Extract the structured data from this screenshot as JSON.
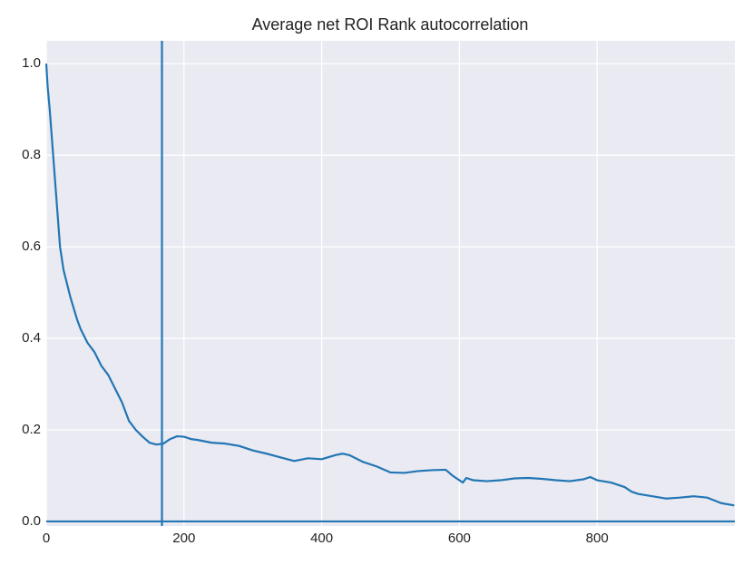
{
  "chart_data": {
    "type": "line",
    "title": "Average net ROI Rank autocorrelation",
    "x": [
      0,
      2,
      5,
      10,
      15,
      20,
      25,
      35,
      45,
      50,
      60,
      70,
      80,
      90,
      100,
      110,
      120,
      130,
      140,
      150,
      160,
      170,
      180,
      190,
      200,
      210,
      220,
      240,
      260,
      280,
      300,
      320,
      340,
      360,
      380,
      400,
      420,
      430,
      440,
      460,
      480,
      500,
      520,
      540,
      560,
      580,
      590,
      600,
      605,
      610,
      620,
      640,
      660,
      680,
      700,
      720,
      740,
      760,
      780,
      790,
      800,
      820,
      840,
      850,
      860,
      880,
      900,
      920,
      940,
      960,
      980,
      999
    ],
    "values": [
      1.0,
      0.95,
      0.9,
      0.8,
      0.7,
      0.6,
      0.55,
      0.49,
      0.44,
      0.42,
      0.39,
      0.37,
      0.34,
      0.32,
      0.29,
      0.26,
      0.22,
      0.2,
      0.185,
      0.172,
      0.168,
      0.17,
      0.18,
      0.186,
      0.185,
      0.18,
      0.178,
      0.172,
      0.17,
      0.165,
      0.155,
      0.148,
      0.14,
      0.132,
      0.138,
      0.136,
      0.145,
      0.148,
      0.145,
      0.13,
      0.12,
      0.107,
      0.106,
      0.11,
      0.112,
      0.113,
      0.1,
      0.09,
      0.085,
      0.095,
      0.09,
      0.088,
      0.09,
      0.094,
      0.095,
      0.093,
      0.09,
      0.088,
      0.092,
      0.097,
      0.09,
      0.085,
      0.075,
      0.065,
      0.06,
      0.055,
      0.05,
      0.052,
      0.055,
      0.052,
      0.04,
      0.035
    ],
    "color": "#2276b4",
    "vline": 168,
    "hline": 0,
    "xlim": [
      0,
      1000
    ],
    "ylim": [
      -0.01,
      1.05
    ],
    "xticks": [
      0,
      200,
      400,
      600,
      800
    ],
    "yticks": [
      {
        "value": 0,
        "label": "0.0"
      },
      {
        "value": 0.2,
        "label": "0.2"
      },
      {
        "value": 0.4,
        "label": "0.4"
      },
      {
        "value": 0.6,
        "label": "0.6"
      },
      {
        "value": 0.8,
        "label": "0.8"
      },
      {
        "value": 1.0,
        "label": "1.0"
      }
    ],
    "grid": true,
    "background": "#eaeaf2"
  }
}
